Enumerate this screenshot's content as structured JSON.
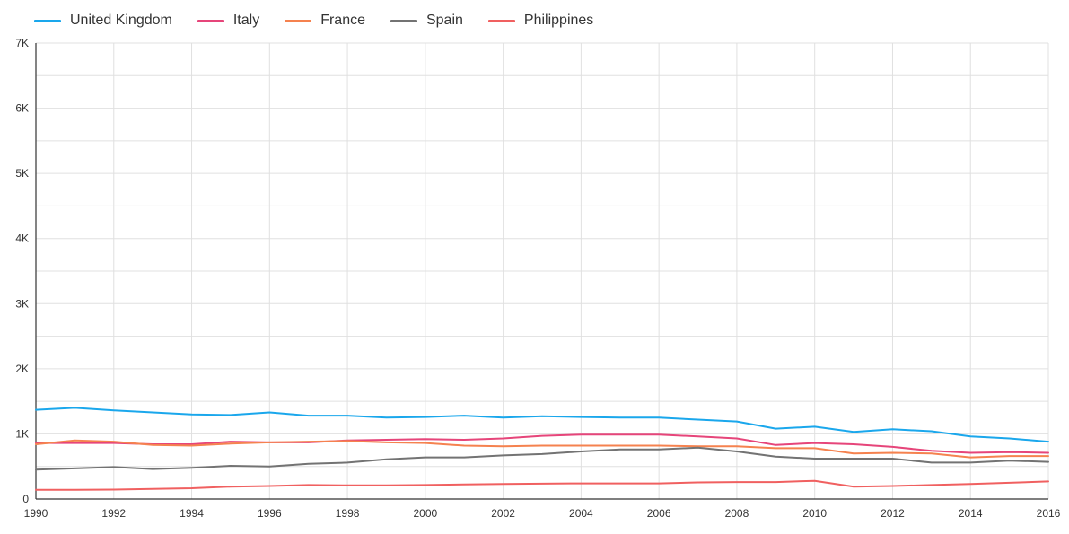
{
  "chart_data": {
    "type": "line",
    "title": "",
    "xlabel": "",
    "ylabel": "",
    "legend_position": "top-left",
    "grid": true,
    "x": [
      1990,
      1991,
      1992,
      1993,
      1994,
      1995,
      1996,
      1997,
      1998,
      1999,
      2000,
      2001,
      2002,
      2003,
      2004,
      2005,
      2006,
      2007,
      2008,
      2009,
      2010,
      2011,
      2012,
      2013,
      2014,
      2015,
      2016
    ],
    "xlim": [
      1990,
      2016
    ],
    "ylim": [
      0,
      7000
    ],
    "x_ticks": [
      1990,
      1992,
      1994,
      1996,
      1998,
      2000,
      2002,
      2004,
      2006,
      2008,
      2010,
      2012,
      2014,
      2016
    ],
    "y_ticks": [
      0,
      1000,
      2000,
      3000,
      4000,
      5000,
      6000,
      7000
    ],
    "y_tick_labels": [
      "0",
      "1K",
      "2K",
      "3K",
      "4K",
      "5K",
      "6K",
      "7K"
    ],
    "series": [
      {
        "name": "United Kingdom",
        "color": "#1aa7ec",
        "values": [
          1370,
          1400,
          1360,
          1330,
          1300,
          1290,
          1330,
          1280,
          1280,
          1250,
          1260,
          1280,
          1250,
          1270,
          1260,
          1250,
          1250,
          1220,
          1190,
          1080,
          1110,
          1030,
          1070,
          1040,
          960,
          930,
          880
        ]
      },
      {
        "name": "Italy",
        "color": "#e6457a",
        "values": [
          860,
          860,
          860,
          840,
          840,
          880,
          870,
          870,
          900,
          910,
          920,
          910,
          930,
          970,
          990,
          990,
          990,
          960,
          930,
          830,
          860,
          840,
          800,
          740,
          710,
          720,
          710
        ]
      },
      {
        "name": "France",
        "color": "#f5824f",
        "values": [
          840,
          900,
          880,
          830,
          820,
          850,
          870,
          880,
          890,
          870,
          860,
          820,
          810,
          820,
          820,
          820,
          820,
          810,
          810,
          780,
          780,
          700,
          710,
          700,
          640,
          660,
          660
        ]
      },
      {
        "name": "Spain",
        "color": "#737373",
        "values": [
          450,
          470,
          490,
          460,
          480,
          510,
          500,
          540,
          560,
          610,
          640,
          640,
          670,
          690,
          730,
          760,
          760,
          790,
          730,
          650,
          620,
          620,
          620,
          560,
          560,
          590,
          570
        ]
      },
      {
        "name": "Philippines",
        "color": "#f06060",
        "values": [
          140,
          140,
          145,
          155,
          165,
          190,
          200,
          215,
          210,
          210,
          215,
          225,
          230,
          235,
          240,
          240,
          240,
          255,
          260,
          260,
          280,
          190,
          200,
          215,
          230,
          250,
          270
        ]
      }
    ]
  }
}
